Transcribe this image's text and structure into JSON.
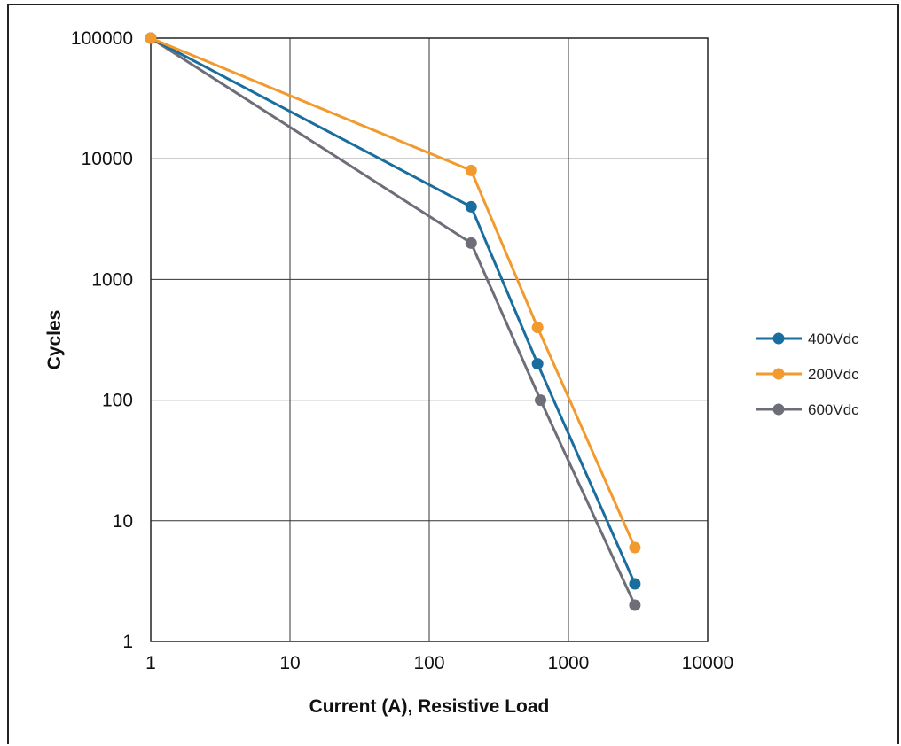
{
  "chart_data": {
    "type": "line",
    "xscale": "log",
    "yscale": "log",
    "xlabel": "Current (A), Resistive Load",
    "ylabel": "Cycles",
    "xlim": [
      1,
      10000
    ],
    "ylim": [
      1,
      100000
    ],
    "x_ticks": [
      "1",
      "10",
      "100",
      "1000",
      "10000"
    ],
    "y_ticks": [
      "1",
      "10",
      "100",
      "1000",
      "10000",
      "100000"
    ],
    "grid": true,
    "legend_position": "right",
    "series": [
      {
        "name": "400Vdc",
        "color": "#1a6e9e",
        "points": [
          [
            1,
            100000
          ],
          [
            200,
            4000
          ],
          [
            600,
            200
          ],
          [
            3000,
            3
          ]
        ]
      },
      {
        "name": "200Vdc",
        "color": "#f29a2e",
        "points": [
          [
            1,
            100000
          ],
          [
            200,
            8000
          ],
          [
            600,
            400
          ],
          [
            3000,
            6
          ]
        ]
      },
      {
        "name": "600Vdc",
        "color": "#6e6e78",
        "points": [
          [
            1,
            100000
          ],
          [
            200,
            2000
          ],
          [
            630,
            100
          ],
          [
            3000,
            2
          ]
        ]
      }
    ]
  }
}
